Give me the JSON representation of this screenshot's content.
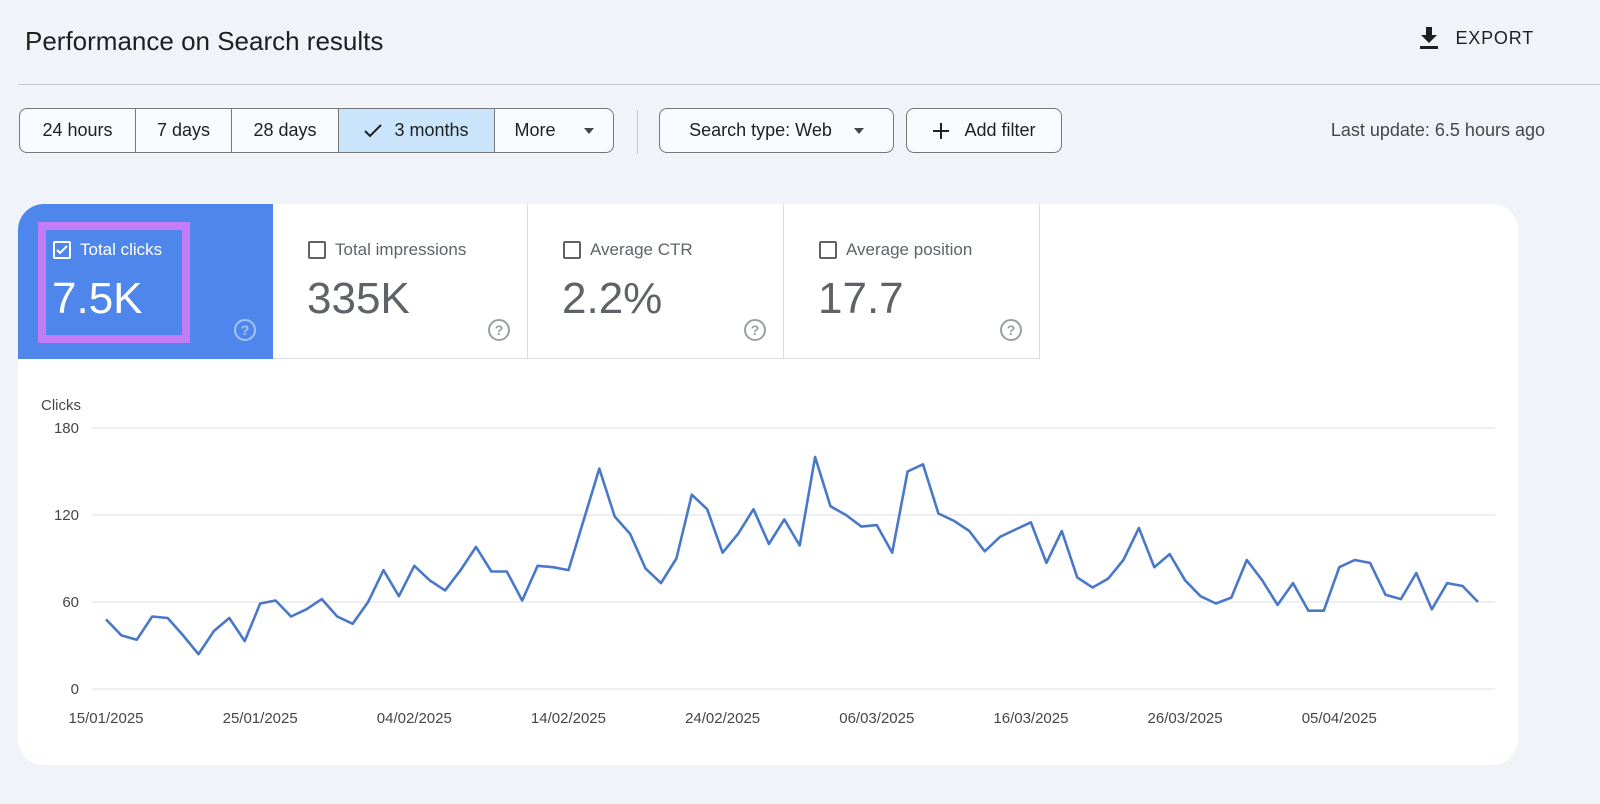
{
  "header": {
    "title": "Performance on Search results",
    "export_label": "EXPORT",
    "export_icon": "download-icon"
  },
  "toolbar": {
    "ranges": [
      {
        "label": "24 hours",
        "active": false
      },
      {
        "label": "7 days",
        "active": false
      },
      {
        "label": "28 days",
        "active": false
      },
      {
        "label": "3 months",
        "active": true
      },
      {
        "label": "More",
        "active": false
      }
    ],
    "search_type": "Search type: Web",
    "add_filter": "Add filter",
    "last_update": "Last update: 6.5 hours ago"
  },
  "metrics": [
    {
      "label": "Total clicks",
      "value": "7.5K",
      "checked": true
    },
    {
      "label": "Total impressions",
      "value": "335K",
      "checked": false
    },
    {
      "label": "Average CTR",
      "value": "2.2%",
      "checked": false
    },
    {
      "label": "Average position",
      "value": "17.7",
      "checked": false
    }
  ],
  "colors": {
    "selected_tile": "#4f86ec",
    "highlight": "#c27cf5",
    "line": "#4a78c9",
    "active_range": "#c9e4fb"
  },
  "chart_data": {
    "type": "line",
    "ylabel": "Clicks",
    "ylim": [
      0,
      180
    ],
    "yticks": [
      "0",
      "60",
      "120",
      "180"
    ],
    "xticks": [
      "15/01/2025",
      "25/01/2025",
      "04/02/2025",
      "14/02/2025",
      "24/02/2025",
      "06/03/2025",
      "16/03/2025",
      "26/03/2025",
      "05/04/2025"
    ],
    "grid": true,
    "x": [
      "15/01/2025",
      "16/01/2025",
      "17/01/2025",
      "18/01/2025",
      "19/01/2025",
      "20/01/2025",
      "21/01/2025",
      "22/01/2025",
      "23/01/2025",
      "24/01/2025",
      "25/01/2025",
      "26/01/2025",
      "27/01/2025",
      "28/01/2025",
      "29/01/2025",
      "30/01/2025",
      "31/01/2025",
      "01/02/2025",
      "02/02/2025",
      "03/02/2025",
      "04/02/2025",
      "05/02/2025",
      "06/02/2025",
      "07/02/2025",
      "08/02/2025",
      "09/02/2025",
      "10/02/2025",
      "11/02/2025",
      "12/02/2025",
      "13/02/2025",
      "14/02/2025",
      "15/02/2025",
      "16/02/2025",
      "17/02/2025",
      "18/02/2025",
      "19/02/2025",
      "20/02/2025",
      "21/02/2025",
      "22/02/2025",
      "23/02/2025",
      "24/02/2025",
      "25/02/2025",
      "26/02/2025",
      "27/02/2025",
      "28/02/2025",
      "01/03/2025",
      "02/03/2025",
      "03/03/2025",
      "04/03/2025",
      "05/03/2025",
      "06/03/2025",
      "07/03/2025",
      "08/03/2025",
      "09/03/2025",
      "10/03/2025",
      "11/03/2025",
      "12/03/2025",
      "13/03/2025",
      "14/03/2025",
      "15/03/2025",
      "16/03/2025",
      "17/03/2025",
      "18/03/2025",
      "19/03/2025",
      "20/03/2025",
      "21/03/2025",
      "22/03/2025",
      "23/03/2025",
      "24/03/2025",
      "25/03/2025",
      "26/03/2025",
      "27/03/2025",
      "28/03/2025",
      "29/03/2025",
      "30/03/2025",
      "31/03/2025",
      "01/04/2025",
      "02/04/2025",
      "03/04/2025",
      "04/04/2025",
      "05/04/2025",
      "06/04/2025",
      "07/04/2025",
      "08/04/2025",
      "09/04/2025",
      "10/04/2025",
      "11/04/2025",
      "12/04/2025",
      "13/04/2025",
      "14/04/2025"
    ],
    "series": [
      {
        "values": [
          48,
          37,
          34,
          50,
          49,
          37,
          24,
          40,
          49,
          33,
          59,
          61,
          50,
          55,
          62,
          50,
          45,
          60,
          82,
          64,
          85,
          75,
          68,
          82,
          98,
          81,
          81,
          61,
          85,
          84,
          82,
          117,
          152,
          119,
          107,
          83,
          73,
          90,
          134,
          124,
          94,
          107,
          124,
          100,
          117,
          99,
          160,
          126,
          120,
          112,
          113,
          94,
          150,
          155,
          121,
          116,
          109,
          95,
          105,
          110,
          115,
          87,
          109,
          77,
          70,
          76,
          89,
          111,
          84,
          93,
          75,
          64,
          59,
          63,
          89,
          75,
          58,
          73,
          54,
          54,
          84,
          89,
          87,
          65,
          62,
          80,
          55,
          73,
          71,
          60
        ]
      }
    ]
  }
}
